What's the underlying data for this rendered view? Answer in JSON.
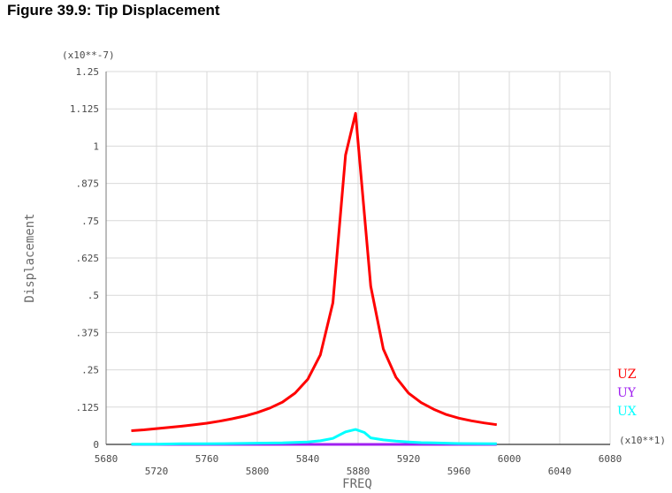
{
  "figure_title": "Figure 39.9: Tip Displacement",
  "chart_data": {
    "type": "line",
    "xlabel": "FREQ",
    "ylabel": "Displacement",
    "x_multiplier": "(x10**1)",
    "y_multiplier": "(x10**-7)",
    "xlim": [
      5680,
      6080
    ],
    "ylim": [
      0,
      1.25
    ],
    "x_ticks": [
      "5680",
      "5720",
      "5760",
      "5800",
      "5840",
      "5880",
      "5920",
      "5960",
      "6000",
      "6040",
      "6080"
    ],
    "y_ticks": [
      "0",
      ".125",
      ".25",
      ".375",
      ".5",
      ".625",
      ".75",
      ".875",
      "1",
      "1.125",
      "1.25"
    ],
    "grid": true,
    "legend_position": "right",
    "series": [
      {
        "name": "UZ",
        "color": "#ff0000",
        "x": [
          5700,
          5710,
          5720,
          5730,
          5740,
          5750,
          5760,
          5770,
          5780,
          5790,
          5800,
          5810,
          5820,
          5830,
          5840,
          5850,
          5860,
          5870,
          5878,
          5890,
          5900,
          5910,
          5920,
          5930,
          5940,
          5950,
          5960,
          5970,
          5980,
          5990
        ],
        "y": [
          0.046,
          0.049,
          0.053,
          0.057,
          0.061,
          0.066,
          0.071,
          0.078,
          0.086,
          0.095,
          0.107,
          0.122,
          0.142,
          0.172,
          0.218,
          0.3,
          0.475,
          0.97,
          1.11,
          0.53,
          0.32,
          0.225,
          0.172,
          0.14,
          0.118,
          0.1,
          0.088,
          0.079,
          0.072,
          0.066
        ]
      },
      {
        "name": "UY",
        "color": "#a020f0",
        "x": [
          5700,
          5990
        ],
        "y": [
          0.0,
          0.0
        ]
      },
      {
        "name": "UX",
        "color": "#00ffff",
        "x": [
          5700,
          5720,
          5740,
          5760,
          5780,
          5800,
          5820,
          5840,
          5850,
          5860,
          5870,
          5878,
          5885,
          5890,
          5900,
          5910,
          5920,
          5930,
          5940,
          5960,
          5990
        ],
        "y": [
          0.001,
          0.001,
          0.002,
          0.002,
          0.003,
          0.004,
          0.005,
          0.008,
          0.012,
          0.02,
          0.042,
          0.05,
          0.04,
          0.022,
          0.015,
          0.011,
          0.008,
          0.006,
          0.005,
          0.003,
          0.002
        ]
      }
    ]
  }
}
